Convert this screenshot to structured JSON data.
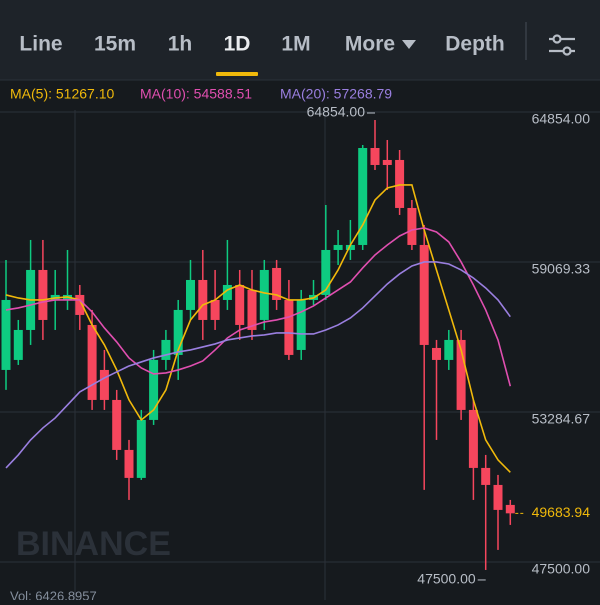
{
  "tabs": [
    {
      "label": "Line",
      "active": false
    },
    {
      "label": "15m",
      "active": false
    },
    {
      "label": "1h",
      "active": false
    },
    {
      "label": "1D",
      "active": true
    },
    {
      "label": "1M",
      "active": false
    },
    {
      "label": "More",
      "active": false
    },
    {
      "label": "Depth",
      "active": false
    }
  ],
  "chart_data": {
    "type": "candlestick",
    "up_color": "#0ecb81",
    "down_color": "#f6465d",
    "ylim": [
      46700,
      66300
    ],
    "yticks": [
      {
        "value": 64854,
        "label": "64854.00"
      },
      {
        "value": 59069.33,
        "label": "59069.33"
      },
      {
        "value": 53284.67,
        "label": "53284.67"
      },
      {
        "value": 47500,
        "label": "47500.00"
      }
    ],
    "grid": true,
    "ohlc": [
      [
        55214,
        59456,
        54443,
        57913
      ],
      [
        55600,
        57142,
        55407,
        56756
      ],
      [
        56756,
        60227,
        56178,
        59070
      ],
      [
        59070,
        60227,
        56371,
        57142
      ],
      [
        57913,
        59070,
        56756,
        58106
      ],
      [
        57913,
        59841,
        57528,
        58106
      ],
      [
        58106,
        58491,
        56756,
        57335
      ],
      [
        56949,
        57528,
        53672,
        54057
      ],
      [
        55214,
        55985,
        53672,
        54057
      ],
      [
        54057,
        54443,
        51744,
        52129
      ],
      [
        52129,
        52515,
        50201,
        51050
      ],
      [
        51050,
        53672,
        50972,
        53286
      ],
      [
        53286,
        55985,
        53093,
        55600
      ],
      [
        55600,
        56756,
        55214,
        56371
      ],
      [
        55793,
        57913,
        54829,
        57528
      ],
      [
        57528,
        59456,
        57142,
        58684
      ],
      [
        58684,
        59841,
        56371,
        57142
      ],
      [
        57913,
        59070,
        56756,
        57142
      ],
      [
        57913,
        60227,
        57528,
        58491
      ],
      [
        58491,
        59070,
        56371,
        56949
      ],
      [
        58299,
        59070,
        56371,
        56756
      ],
      [
        57142,
        59456,
        56756,
        59070
      ],
      [
        59147,
        59456,
        57528,
        57913
      ],
      [
        57913,
        58684,
        55600,
        55793
      ],
      [
        55985,
        58299,
        55600,
        57913
      ],
      [
        57913,
        58684,
        57720,
        58106
      ],
      [
        58106,
        61576,
        57913,
        59841
      ],
      [
        59841,
        60612,
        59263,
        60034
      ],
      [
        59841,
        60998,
        59456,
        60034
      ],
      [
        60034,
        63890,
        59841,
        63774
      ],
      [
        63774,
        64854,
        62926,
        63119
      ],
      [
        63312,
        64083,
        62155,
        63119
      ],
      [
        63312,
        63697,
        61191,
        61461
      ],
      [
        61461,
        61769,
        59841,
        60034
      ],
      [
        60034,
        60805,
        50587,
        56178
      ],
      [
        56062,
        56371,
        52515,
        55600
      ],
      [
        55600,
        56756,
        55214,
        56371
      ],
      [
        56371,
        56756,
        53286,
        53672
      ],
      [
        53672,
        54057,
        50201,
        51435
      ],
      [
        51435,
        51936,
        47500,
        50779
      ],
      [
        50779,
        51165,
        48273,
        49816
      ],
      [
        50008,
        50201,
        49237,
        49683.94
      ]
    ],
    "ma": [
      {
        "name": "MA(5): 51267.10",
        "color": "#f0b90b",
        "values": [
          58106,
          57990,
          57913,
          57913,
          57990,
          58029,
          57913,
          56949,
          56178,
          55214,
          54057,
          53286,
          53672,
          54443,
          55985,
          57142,
          57720,
          57913,
          58299,
          58491,
          58299,
          58183,
          58106,
          57913,
          57913,
          57990,
          58299,
          59070,
          60034,
          60805,
          61769,
          62232,
          62348,
          62348,
          60612,
          59070,
          57528,
          55985,
          54057,
          52515,
          51744,
          51267.1
        ]
      },
      {
        "name": "MA(10): 54588.51",
        "color": "#e04fb0",
        "values": [
          57528,
          57605,
          57720,
          57836,
          57913,
          57913,
          57913,
          57451,
          56834,
          56294,
          55677,
          55291,
          55060,
          55098,
          55214,
          55368,
          55561,
          55985,
          56448,
          56756,
          56910,
          57065,
          57142,
          57258,
          57451,
          57682,
          57990,
          58299,
          58607,
          59147,
          59648,
          60034,
          60381,
          60612,
          60689,
          60535,
          60150,
          59379,
          58491,
          57528,
          56371,
          54588.51
        ]
      },
      {
        "name": "MA(20): 57268.79",
        "color": "#9a7fe0",
        "values": [
          51435,
          51936,
          52515,
          52978,
          53363,
          53865,
          54366,
          54636,
          54906,
          55137,
          55368,
          55523,
          55677,
          55793,
          55908,
          55985,
          56101,
          56217,
          56371,
          56448,
          56525,
          56564,
          56641,
          56641,
          56602,
          56602,
          56756,
          56949,
          57219,
          57605,
          58068,
          58530,
          58916,
          59224,
          59379,
          59379,
          59301,
          59070,
          58761,
          58376,
          57913,
          57268.79
        ]
      }
    ],
    "annotations": {
      "high": "64854.00",
      "low": "47500.00",
      "volume": "Vol: 6426.8957",
      "watermark": "BINANCE"
    }
  }
}
